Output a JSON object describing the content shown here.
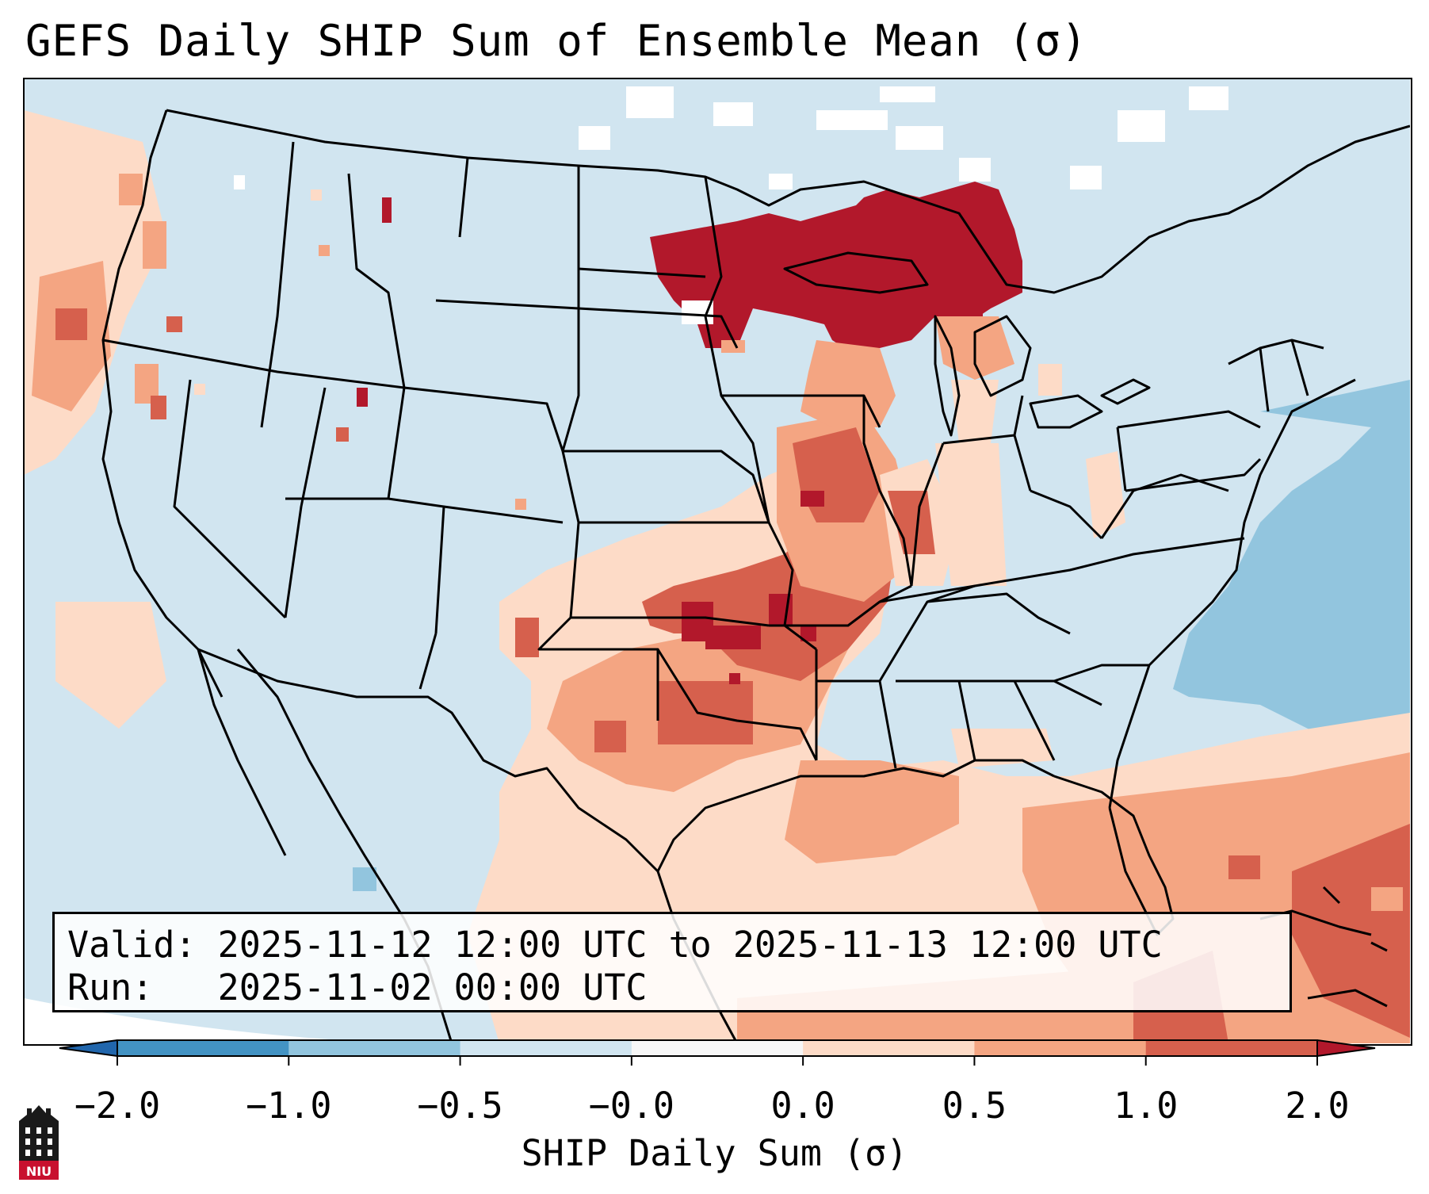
{
  "title": "GEFS Daily SHIP Sum of Ensemble Mean (σ)",
  "info": {
    "valid_line": "Valid: 2025-11-12 12:00 UTC to 2025-11-13 12:00 UTC",
    "run_line": "Run:   2025-11-02 00:00 UTC"
  },
  "colorbar": {
    "label": "SHIP Daily Sum (σ)",
    "ticks": [
      "−2.0",
      "−1.0",
      "−0.5",
      "−0.0",
      "0.0",
      "0.5",
      "1.0",
      "2.0"
    ],
    "colors": [
      "#4393c3",
      "#92c5de",
      "#d1e5f0",
      "#f7f7f7",
      "#fddbc7",
      "#f4a582",
      "#d6604d",
      "#b2182b"
    ],
    "extend_low_color": "#2166ac",
    "extend_high_color": "#b2182b"
  },
  "map": {
    "background_color": "#d1e5f0",
    "anomaly_regions": [
      "Upper Midwest / Great Lakes (≥ 2.0)",
      "Oklahoma / Kansas / Missouri (1.0 to 2.0)",
      "Texas / Gulf Coast (0.0 to 1.0)",
      "Caribbean (1.0 to 2.0)",
      "Western Atlantic (−1.0 to −0.5)"
    ]
  },
  "logo": {
    "text": "NIU"
  }
}
